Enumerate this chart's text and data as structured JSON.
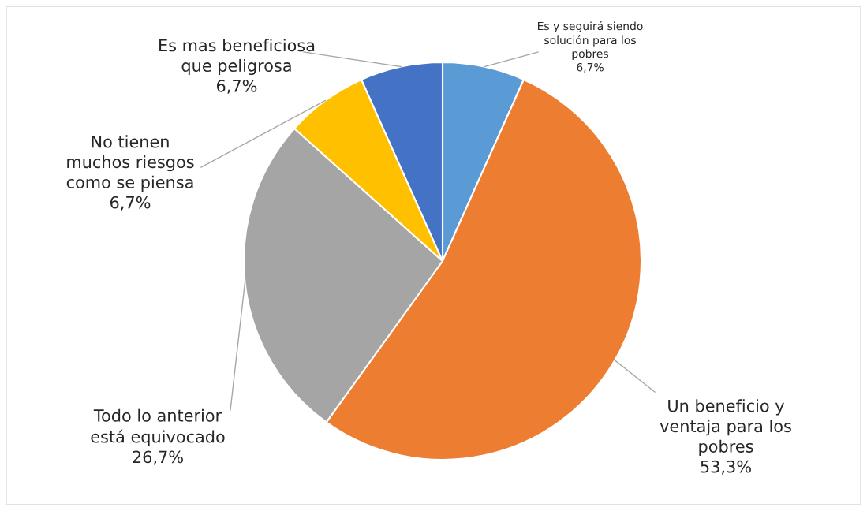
{
  "chart_data": {
    "type": "pie",
    "categories": [
      "Es y seguirá siendo\nsolución para los\npobres",
      "Un beneficio y\nventaja para los\npobres",
      "Todo lo anterior\nestá equivocado",
      "No tienen\nmuchos riesgos\ncomo se piensa",
      "Es mas beneficiosa\nque peligrosa"
    ],
    "values": [
      6.7,
      53.3,
      26.7,
      6.7,
      6.7
    ],
    "value_labels": [
      "6,7%",
      "53,3%",
      "26,7%",
      "6,7%",
      "6,7%"
    ],
    "colors": [
      "#5b9bd5",
      "#ed7d31",
      "#a5a5a5",
      "#ffc000",
      "#4472c4"
    ],
    "legend": false
  }
}
